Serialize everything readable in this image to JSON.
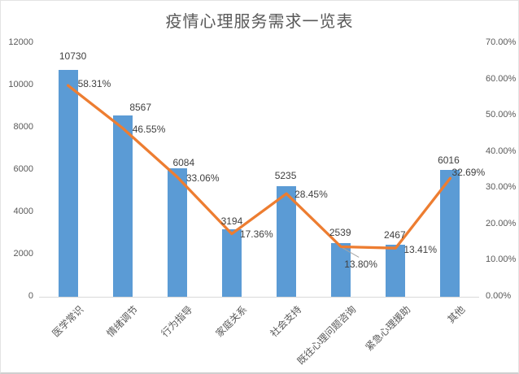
{
  "chart_data": {
    "type": "combo",
    "title": "疫情心理服务需求一览表",
    "categories": [
      "医学常识",
      "情绪调节",
      "行为指导",
      "家庭关系",
      "社会支持",
      "既往心理问题咨询",
      "紧急心理援助",
      "其他"
    ],
    "series": [
      {
        "name": "demand-count-bars",
        "type": "bar",
        "axis": "left",
        "color": "#5B9BD5",
        "values": [
          10730,
          8567,
          6084,
          3194,
          5235,
          2539,
          2467,
          6016
        ],
        "data_labels": [
          "10730",
          "8567",
          "6084",
          "3194",
          "5235",
          "2539",
          "2467",
          "6016"
        ]
      },
      {
        "name": "demand-percentage-line",
        "type": "line",
        "axis": "right",
        "color": "#ED7D31",
        "values": [
          58.31,
          46.55,
          33.06,
          17.36,
          28.45,
          13.8,
          13.41,
          32.69
        ],
        "data_labels": [
          "58.31%",
          "46.55%",
          "33.06%",
          "17.36%",
          "28.45%",
          "13.80%",
          "13.41%",
          "32.69%"
        ]
      }
    ],
    "left_axis": {
      "min": 0,
      "max": 12000,
      "step": 2000,
      "tick_labels": [
        "0",
        "2000",
        "4000",
        "6000",
        "8000",
        "10000",
        "12000"
      ]
    },
    "right_axis": {
      "min": 0,
      "max": 70,
      "step": 10,
      "tick_labels": [
        "0.00%",
        "10.00%",
        "20.00%",
        "30.00%",
        "40.00%",
        "50.00%",
        "60.00%",
        "70.00%"
      ]
    },
    "grid": false,
    "legend": false
  },
  "colors": {
    "bar": "#5B9BD5",
    "line": "#ED7D31",
    "data_label": "#404040",
    "axis_label": "#595959",
    "title": "#595959",
    "axis_line": "#D9D9D9",
    "leader_line": "#A6A6A6"
  }
}
